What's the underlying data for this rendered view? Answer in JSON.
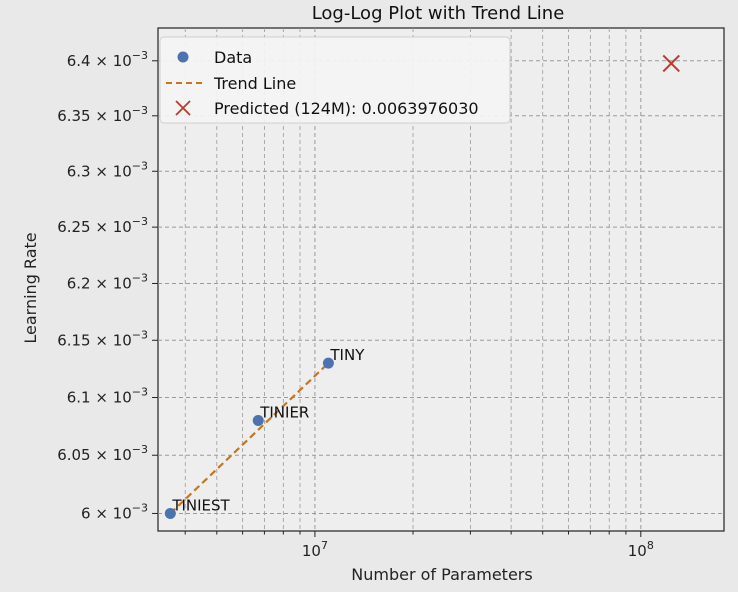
{
  "chart_data": {
    "type": "scatter",
    "title": "Log-Log Plot with Trend Line",
    "xlabel": "Number of Parameters",
    "ylabel": "Learning Rate",
    "xscale": "log",
    "yscale": "log",
    "xlim": [
      3300000,
      180000000
    ],
    "ylim": [
      0.005985,
      0.00643
    ],
    "x_ticks": [
      {
        "value": 10000000,
        "base": "10",
        "exp": "7"
      },
      {
        "value": 100000000,
        "base": "10",
        "exp": "8"
      }
    ],
    "y_ticks": [
      {
        "value": 0.006,
        "mant": "6",
        "exp": "−3"
      },
      {
        "value": 0.00605,
        "mant": "6.05",
        "exp": "−3"
      },
      {
        "value": 0.0061,
        "mant": "6.1",
        "exp": "−3"
      },
      {
        "value": 0.00615,
        "mant": "6.15",
        "exp": "−3"
      },
      {
        "value": 0.0062,
        "mant": "6.2",
        "exp": "−3"
      },
      {
        "value": 0.00625,
        "mant": "6.25",
        "exp": "−3"
      },
      {
        "value": 0.0063,
        "mant": "6.3",
        "exp": "−3"
      },
      {
        "value": 0.00635,
        "mant": "6.35",
        "exp": "−3"
      },
      {
        "value": 0.0064,
        "mant": "6.4",
        "exp": "−3"
      }
    ],
    "tick_times": "×",
    "series": [
      {
        "name": "Data",
        "type": "scatter",
        "color": "#4c72b0",
        "points": [
          {
            "x": 3600000,
            "y": 0.006,
            "label": "TINIEST"
          },
          {
            "x": 6700000,
            "y": 0.00608,
            "label": "TINIER"
          },
          {
            "x": 11000000,
            "y": 0.00613,
            "label": "TINY"
          }
        ]
      },
      {
        "name": "Trend Line",
        "type": "line",
        "style": "dashed",
        "color": "#c8751f",
        "points": [
          {
            "x": 3600000,
            "y": 0.006
          },
          {
            "x": 11000000,
            "y": 0.00613
          }
        ]
      },
      {
        "name": "Predicted (124M): 0.0063976030",
        "type": "marker-x",
        "color": "#c0392b",
        "points": [
          {
            "x": 124000000,
            "y": 0.006397603
          }
        ]
      }
    ],
    "grid": true,
    "legend_position": "top-left"
  }
}
